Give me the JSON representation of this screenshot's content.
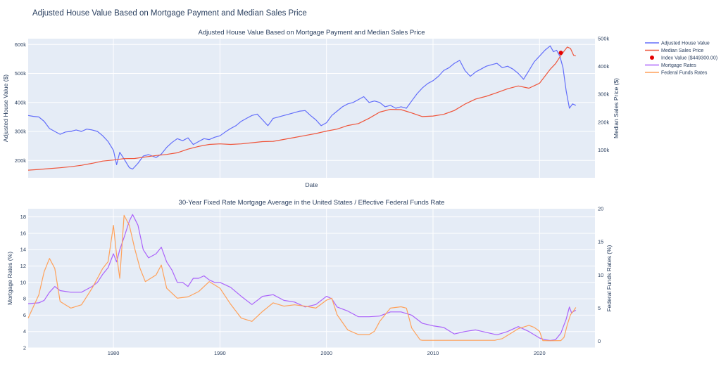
{
  "page": {
    "title": "Adjusted House Value Based on Mortgage Payment and Median Sales Price"
  },
  "chart_data": [
    {
      "type": "line",
      "title": "Adjusted House Value Based on Mortgage Payment and Median Sales Price",
      "xlabel": "Date",
      "ylabel": "Adjusted House Value ($)",
      "y2label": "Median Sales Price ($)",
      "xlim": [
        1972.0,
        2025.2
      ],
      "ylim": [
        140000,
        620000
      ],
      "y2lim": [
        0,
        500000
      ],
      "yticks": [
        200000,
        300000,
        400000,
        500000,
        600000
      ],
      "ytick_labels": [
        "200k",
        "300k",
        "400k",
        "500k",
        "600k"
      ],
      "y2ticks": [
        100000,
        200000,
        300000,
        400000,
        500000
      ],
      "y2tick_labels": [
        "100k",
        "200k",
        "300k",
        "400k",
        "500k"
      ],
      "grid": true,
      "legend_position": "right",
      "series": [
        {
          "name": "Adjusted House Value",
          "axis": "y",
          "color": "#636efa",
          "x": [
            1972.0,
            1972.5,
            1973.0,
            1973.5,
            1974.0,
            1974.5,
            1975.0,
            1975.5,
            1976.0,
            1976.5,
            1977.0,
            1977.5,
            1978.0,
            1978.5,
            1979.0,
            1979.5,
            1980.0,
            1980.3,
            1980.6,
            1981.0,
            1981.5,
            1981.8,
            1982.3,
            1982.8,
            1983.3,
            1984.0,
            1984.5,
            1985.0,
            1985.5,
            1986.0,
            1986.5,
            1987.0,
            1987.5,
            1988.0,
            1988.5,
            1989.0,
            1989.5,
            1990.0,
            1990.5,
            1991.0,
            1991.5,
            1992.0,
            1992.5,
            1993.0,
            1993.5,
            1994.0,
            1994.5,
            1995.0,
            1995.5,
            1996.0,
            1996.5,
            1997.0,
            1997.5,
            1998.0,
            1998.5,
            1999.0,
            1999.5,
            2000.0,
            2000.5,
            2001.0,
            2001.5,
            2002.0,
            2002.5,
            2003.0,
            2003.5,
            2004.0,
            2004.5,
            2005.0,
            2005.5,
            2006.0,
            2006.5,
            2007.0,
            2007.5,
            2008.0,
            2008.5,
            2009.0,
            2009.5,
            2010.0,
            2010.5,
            2011.0,
            2011.5,
            2012.0,
            2012.5,
            2013.0,
            2013.5,
            2014.0,
            2014.5,
            2015.0,
            2015.5,
            2016.0,
            2016.5,
            2017.0,
            2017.5,
            2018.0,
            2018.5,
            2019.0,
            2019.5,
            2020.0,
            2020.5,
            2021.0,
            2021.3,
            2021.6,
            2021.9,
            2022.2,
            2022.5,
            2022.8,
            2023.1,
            2023.4
          ],
          "y": [
            355000,
            352000,
            350000,
            335000,
            310000,
            300000,
            290000,
            298000,
            300000,
            305000,
            300000,
            308000,
            305000,
            300000,
            285000,
            265000,
            235000,
            185000,
            228000,
            205000,
            175000,
            170000,
            190000,
            215000,
            220000,
            210000,
            222000,
            245000,
            262000,
            275000,
            268000,
            278000,
            255000,
            265000,
            275000,
            272000,
            280000,
            285000,
            298000,
            310000,
            320000,
            335000,
            345000,
            355000,
            360000,
            340000,
            320000,
            345000,
            350000,
            355000,
            360000,
            365000,
            370000,
            372000,
            355000,
            340000,
            320000,
            330000,
            355000,
            370000,
            385000,
            395000,
            400000,
            410000,
            420000,
            400000,
            405000,
            400000,
            385000,
            390000,
            380000,
            385000,
            380000,
            405000,
            430000,
            450000,
            465000,
            475000,
            490000,
            510000,
            520000,
            535000,
            545000,
            510000,
            490000,
            505000,
            515000,
            525000,
            530000,
            535000,
            520000,
            525000,
            515000,
            500000,
            480000,
            510000,
            540000,
            560000,
            580000,
            595000,
            575000,
            580000,
            560000,
            520000,
            440000,
            380000,
            395000,
            390000
          ]
        },
        {
          "name": "Median Sales Price",
          "axis": "y2",
          "color": "#ef553b",
          "x": [
            1972.0,
            1973.0,
            1974.0,
            1975.0,
            1976.0,
            1977.0,
            1978.0,
            1979.0,
            1980.0,
            1981.0,
            1982.0,
            1983.0,
            1984.0,
            1985.0,
            1986.0,
            1987.0,
            1988.0,
            1989.0,
            1990.0,
            1991.0,
            1992.0,
            1993.0,
            1994.0,
            1995.0,
            1996.0,
            1997.0,
            1998.0,
            1999.0,
            2000.0,
            2001.0,
            2002.0,
            2003.0,
            2004.0,
            2005.0,
            2006.0,
            2007.0,
            2008.0,
            2009.0,
            2010.0,
            2011.0,
            2012.0,
            2013.0,
            2014.0,
            2015.0,
            2016.0,
            2017.0,
            2018.0,
            2019.0,
            2020.0,
            2020.5,
            2021.0,
            2021.5,
            2022.0,
            2022.3,
            2022.6,
            2022.9,
            2023.2,
            2023.4
          ],
          "y": [
            27500,
            30000,
            33000,
            36000,
            40000,
            45000,
            52000,
            60000,
            64000,
            69000,
            69500,
            75000,
            80000,
            84000,
            90000,
            103000,
            113000,
            120000,
            122000,
            120000,
            122000,
            126000,
            130000,
            131000,
            138000,
            145000,
            152000,
            159000,
            168000,
            175000,
            188000,
            195000,
            214000,
            236000,
            246000,
            245000,
            233000,
            220000,
            222000,
            228000,
            242000,
            265000,
            283000,
            293000,
            306000,
            320000,
            330000,
            322000,
            340000,
            365000,
            390000,
            410000,
            440000,
            455000,
            470000,
            465000,
            440000,
            438000
          ]
        },
        {
          "name": "Index Value ($449300.00)",
          "axis": "y2",
          "color": "#e30000",
          "mode": "markers",
          "x": [
            2022.0
          ],
          "y": [
            449300
          ]
        }
      ]
    },
    {
      "type": "line",
      "title": "30-Year Fixed Rate Mortgage Average in the United States / Effective Federal Funds Rate",
      "xlabel": "",
      "ylabel": "Mortgage Rates (%)",
      "y2label": "Federal Funds Rates (%)",
      "xlim": [
        1972.0,
        2025.2
      ],
      "ylim": [
        2,
        19
      ],
      "y2lim": [
        -1,
        20
      ],
      "yticks": [
        2,
        4,
        6,
        8,
        10,
        12,
        14,
        16,
        18
      ],
      "y2ticks": [
        0,
        5,
        10,
        15,
        20
      ],
      "xticks": [
        1980,
        1990,
        2000,
        2010,
        2020
      ],
      "grid": true,
      "legend_position": "right",
      "series": [
        {
          "name": "Mortgage Rates",
          "axis": "y",
          "color": "#ab63fa",
          "x": [
            1972.0,
            1973.0,
            1973.5,
            1974.0,
            1974.5,
            1975.0,
            1976.0,
            1977.0,
            1978.0,
            1978.5,
            1979.0,
            1979.5,
            1980.0,
            1980.3,
            1980.6,
            1981.0,
            1981.5,
            1981.8,
            1982.3,
            1982.8,
            1983.3,
            1984.0,
            1984.5,
            1985.0,
            1985.5,
            1986.0,
            1986.5,
            1987.0,
            1987.5,
            1988.0,
            1988.5,
            1989.0,
            1989.5,
            1990.0,
            1991.0,
            1992.0,
            1993.0,
            1994.0,
            1995.0,
            1996.0,
            1997.0,
            1998.0,
            1999.0,
            2000.0,
            2000.5,
            2001.0,
            2002.0,
            2003.0,
            2004.0,
            2005.0,
            2006.0,
            2007.0,
            2008.0,
            2009.0,
            2010.0,
            2011.0,
            2012.0,
            2013.0,
            2014.0,
            2015.0,
            2016.0,
            2017.0,
            2018.0,
            2019.0,
            2020.0,
            2020.5,
            2021.0,
            2021.5,
            2022.0,
            2022.5,
            2022.8,
            2023.0,
            2023.4
          ],
          "y": [
            7.4,
            7.5,
            7.8,
            8.8,
            9.5,
            9.0,
            8.8,
            8.8,
            9.5,
            10.0,
            11.0,
            11.8,
            13.5,
            12.5,
            14.0,
            15.5,
            17.5,
            18.3,
            17.0,
            14.0,
            13.0,
            13.5,
            14.3,
            12.5,
            11.5,
            10.0,
            10.0,
            9.5,
            10.5,
            10.5,
            10.8,
            10.3,
            10.0,
            10.0,
            9.4,
            8.3,
            7.3,
            8.3,
            8.5,
            7.8,
            7.6,
            7.0,
            7.3,
            8.3,
            8.0,
            7.0,
            6.5,
            5.8,
            5.8,
            5.9,
            6.4,
            6.4,
            6.0,
            5.0,
            4.7,
            4.5,
            3.7,
            4.0,
            4.2,
            3.9,
            3.6,
            4.0,
            4.6,
            4.0,
            3.2,
            3.0,
            2.9,
            3.0,
            3.8,
            5.5,
            7.0,
            6.3,
            6.6
          ]
        },
        {
          "name": "Federal Funds Rates",
          "axis": "y2",
          "color": "#ffa15a",
          "x": [
            1972.0,
            1973.0,
            1973.5,
            1974.0,
            1974.5,
            1975.0,
            1976.0,
            1977.0,
            1978.0,
            1979.0,
            1979.5,
            1980.0,
            1980.3,
            1980.6,
            1981.0,
            1981.5,
            1982.0,
            1982.5,
            1983.0,
            1984.0,
            1984.5,
            1985.0,
            1986.0,
            1987.0,
            1988.0,
            1989.0,
            1989.5,
            1990.0,
            1991.0,
            1992.0,
            1993.0,
            1994.0,
            1995.0,
            1996.0,
            1997.0,
            1998.0,
            1999.0,
            2000.0,
            2000.5,
            2001.0,
            2002.0,
            2003.0,
            2004.0,
            2004.5,
            2005.0,
            2006.0,
            2007.0,
            2007.5,
            2008.0,
            2008.8,
            2009.0,
            2015.8,
            2016.5,
            2017.0,
            2018.0,
            2019.0,
            2019.5,
            2020.0,
            2020.3,
            2021.0,
            2022.0,
            2022.3,
            2022.6,
            2022.9,
            2023.2,
            2023.4
          ],
          "y": [
            3.5,
            7.0,
            10.5,
            12.5,
            11.0,
            6.0,
            5.0,
            5.5,
            8.0,
            11.0,
            12.0,
            17.5,
            13.0,
            9.5,
            19.0,
            17.5,
            14.0,
            11.0,
            9.0,
            10.0,
            11.5,
            8.0,
            6.5,
            6.7,
            7.5,
            9.0,
            8.5,
            8.0,
            5.6,
            3.5,
            3.0,
            4.5,
            5.8,
            5.3,
            5.5,
            5.3,
            5.0,
            6.2,
            6.5,
            4.0,
            1.7,
            1.0,
            1.0,
            1.5,
            3.0,
            5.0,
            5.2,
            5.0,
            2.0,
            0.2,
            0.15,
            0.15,
            0.4,
            0.9,
            1.9,
            2.4,
            2.1,
            1.5,
            0.1,
            0.08,
            0.1,
            0.6,
            2.5,
            4.0,
            4.6,
            5.1
          ]
        }
      ]
    }
  ]
}
